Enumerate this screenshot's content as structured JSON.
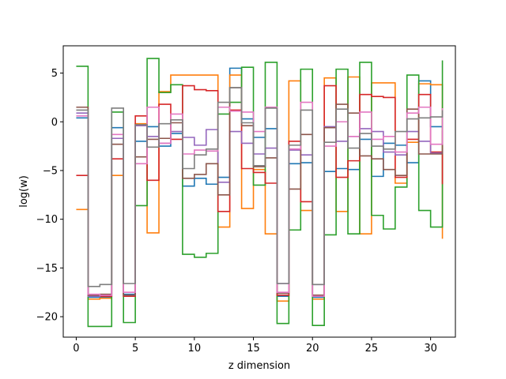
{
  "chart_data": {
    "type": "line",
    "drawstyle": "steps-post",
    "title": "",
    "xlabel": "z dimension",
    "ylabel": "log(w)",
    "xlim": [
      -1.1,
      32.1
    ],
    "ylim": [
      -22.1,
      7.8
    ],
    "xticks": [
      0,
      5,
      10,
      15,
      20,
      25,
      30
    ],
    "yticks": [
      -20,
      -15,
      -10,
      -5,
      0,
      5
    ],
    "xtick_labels": [
      "0",
      "5",
      "10",
      "15",
      "20",
      "25",
      "30"
    ],
    "ytick_labels": [
      "−20",
      "−15",
      "−10",
      "−5",
      "0",
      "5"
    ],
    "grid": false,
    "x": [
      0,
      1,
      2,
      3,
      4,
      5,
      6,
      7,
      8,
      9,
      10,
      11,
      12,
      13,
      14,
      15,
      16,
      17,
      18,
      19,
      20,
      21,
      22,
      23,
      24,
      25,
      26,
      27,
      28,
      29,
      30,
      31
    ],
    "series": [
      {
        "color": "#1f77b4",
        "values": [
          0.4,
          -18.0,
          -18.0,
          -0.6,
          -17.7,
          -2.0,
          -0.5,
          -2.5,
          -1.2,
          -6.6,
          -5.8,
          -6.4,
          -5.7,
          5.5,
          0.3,
          -1.6,
          -0.7,
          -17.9,
          -4.3,
          -4.2,
          -18.0,
          -5.1,
          -4.8,
          -4.9,
          -1.8,
          -5.6,
          -2.2,
          -2.4,
          -4.2,
          4.2,
          -0.5,
          -0.5
        ]
      },
      {
        "color": "#ff7f0e",
        "values": [
          -9.0,
          -18.2,
          -18.1,
          -5.5,
          -17.9,
          -0.2,
          -11.4,
          3.1,
          4.8,
          4.8,
          4.8,
          4.8,
          -10.8,
          4.8,
          -8.9,
          -4.9,
          -11.5,
          -18.4,
          4.2,
          -9.1,
          -18.2,
          4.5,
          -9.2,
          4.6,
          -11.5,
          4.0,
          4.0,
          -6.3,
          -2.1,
          3.9,
          3.8,
          -12.0
        ]
      },
      {
        "color": "#2ca02c",
        "values": [
          5.7,
          -21.0,
          -21.0,
          1.0,
          -20.6,
          -8.6,
          6.5,
          3.0,
          3.8,
          -13.6,
          -13.9,
          -13.5,
          0.8,
          2.0,
          5.6,
          -6.5,
          6.1,
          -20.7,
          -11.1,
          5.4,
          -20.9,
          -11.6,
          5.4,
          -11.5,
          6.1,
          -9.6,
          -11.0,
          -6.7,
          4.8,
          -9.1,
          -10.8,
          6.3
        ]
      },
      {
        "color": "#d62728",
        "values": [
          -5.5,
          -17.8,
          -17.9,
          -3.8,
          -17.9,
          0.6,
          -6.0,
          1.8,
          -1.8,
          3.7,
          3.3,
          3.2,
          -9.2,
          1.2,
          -4.8,
          -5.2,
          -6.3,
          -17.8,
          -2.0,
          -8.2,
          -17.8,
          3.7,
          -5.7,
          -4.0,
          2.8,
          2.6,
          2.5,
          -5.7,
          -1.8,
          2.8,
          -3.1,
          -6.4
        ]
      },
      {
        "color": "#9467bd",
        "values": [
          0.9,
          -17.9,
          -17.8,
          -1.7,
          -17.8,
          -0.4,
          -1.5,
          -2.2,
          -1.0,
          -1.6,
          -2.4,
          -0.8,
          -6.2,
          -1.0,
          -2.2,
          -3.3,
          -2.7,
          -16.6,
          -2.9,
          -3.4,
          -16.7,
          -0.5,
          -2.0,
          -1.5,
          -0.7,
          -1.0,
          -3.1,
          -3.4,
          -1.0,
          -2.0,
          -3.2,
          -2.8
        ]
      },
      {
        "color": "#8c564b",
        "values": [
          1.5,
          -17.8,
          -17.7,
          -2.3,
          -17.8,
          -3.6,
          -1.8,
          -1.7,
          -0.1,
          -5.8,
          -5.4,
          -4.3,
          -7.5,
          3.5,
          -0.4,
          -4.6,
          -3.7,
          -17.6,
          -6.9,
          -1.3,
          -17.8,
          -0.6,
          1.8,
          0.9,
          -3.5,
          -3.8,
          -4.9,
          -5.5,
          1.3,
          -3.3,
          -3.3,
          -0.9
        ]
      },
      {
        "color": "#e377c2",
        "values": [
          0.6,
          -17.7,
          -17.8,
          -1.3,
          -17.5,
          -4.3,
          1.5,
          -2.2,
          0.8,
          -3.3,
          -2.9,
          -3.0,
          1.5,
          1.1,
          1.0,
          -1.0,
          1.5,
          -17.5,
          -2.8,
          2.0,
          -17.9,
          -2.5,
          0.0,
          -1.5,
          1.0,
          -1.8,
          -1.5,
          -3.1,
          0.9,
          1.5,
          -2.3,
          1.4
        ]
      },
      {
        "color": "#7f7f7f",
        "values": [
          1.2,
          -16.9,
          -16.7,
          1.4,
          -16.6,
          -0.3,
          -2.6,
          -0.2,
          0.2,
          -4.8,
          -3.4,
          -2.8,
          2.0,
          3.5,
          -0.1,
          -4.5,
          1.4,
          -16.6,
          -2.4,
          1.2,
          -16.7,
          -2.1,
          1.3,
          -2.7,
          -1.2,
          -2.5,
          -2.8,
          -1.0,
          0.3,
          0.4,
          0.5,
          1.2
        ]
      }
    ]
  }
}
